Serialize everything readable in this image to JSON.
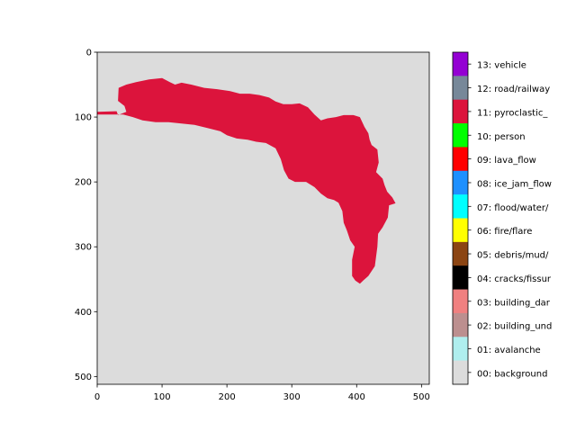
{
  "chart_data": {
    "type": "heatmap",
    "x_ticks": [
      0,
      100,
      200,
      300,
      400,
      500
    ],
    "y_ticks": [
      0,
      100,
      200,
      300,
      400,
      500
    ],
    "xlim": [
      0,
      512
    ],
    "ylim": [
      512,
      0
    ],
    "background_color": "#dcdcdc",
    "mask": {
      "class": "11: pyroclastic_",
      "color": "#dc143c",
      "outline": [
        [
          0,
          92
        ],
        [
          30,
          91
        ],
        [
          32,
          97
        ],
        [
          45,
          92
        ],
        [
          42,
          83
        ],
        [
          32,
          75
        ],
        [
          33,
          55
        ],
        [
          45,
          50
        ],
        [
          60,
          46
        ],
        [
          80,
          42
        ],
        [
          100,
          40
        ],
        [
          112,
          46
        ],
        [
          120,
          50
        ],
        [
          130,
          47
        ],
        [
          145,
          50
        ],
        [
          165,
          55
        ],
        [
          185,
          57
        ],
        [
          205,
          60
        ],
        [
          220,
          64
        ],
        [
          235,
          64
        ],
        [
          250,
          66
        ],
        [
          265,
          70
        ],
        [
          275,
          76
        ],
        [
          287,
          80
        ],
        [
          300,
          80
        ],
        [
          312,
          79
        ],
        [
          325,
          85
        ],
        [
          335,
          96
        ],
        [
          345,
          105
        ],
        [
          355,
          102
        ],
        [
          368,
          100
        ],
        [
          380,
          97
        ],
        [
          395,
          97
        ],
        [
          405,
          100
        ],
        [
          412,
          115
        ],
        [
          418,
          125
        ],
        [
          420,
          135
        ],
        [
          423,
          143
        ],
        [
          432,
          150
        ],
        [
          434,
          170
        ],
        [
          430,
          185
        ],
        [
          440,
          195
        ],
        [
          443,
          205
        ],
        [
          447,
          215
        ],
        [
          455,
          224
        ],
        [
          460,
          233
        ],
        [
          450,
          236
        ],
        [
          448,
          255
        ],
        [
          440,
          270
        ],
        [
          433,
          280
        ],
        [
          432,
          300
        ],
        [
          428,
          330
        ],
        [
          418,
          345
        ],
        [
          410,
          352
        ],
        [
          405,
          357
        ],
        [
          398,
          352
        ],
        [
          393,
          345
        ],
        [
          393,
          320
        ],
        [
          397,
          300
        ],
        [
          390,
          290
        ],
        [
          385,
          275
        ],
        [
          380,
          263
        ],
        [
          378,
          245
        ],
        [
          372,
          232
        ],
        [
          365,
          228
        ],
        [
          355,
          225
        ],
        [
          345,
          218
        ],
        [
          335,
          208
        ],
        [
          322,
          200
        ],
        [
          305,
          200
        ],
        [
          295,
          195
        ],
        [
          288,
          182
        ],
        [
          283,
          165
        ],
        [
          275,
          148
        ],
        [
          260,
          140
        ],
        [
          245,
          138
        ],
        [
          232,
          135
        ],
        [
          215,
          133
        ],
        [
          200,
          128
        ],
        [
          190,
          122
        ],
        [
          170,
          117
        ],
        [
          150,
          112
        ],
        [
          130,
          110
        ],
        [
          110,
          108
        ],
        [
          90,
          108
        ],
        [
          70,
          105
        ],
        [
          55,
          100
        ],
        [
          40,
          96
        ],
        [
          0,
          96
        ]
      ]
    },
    "legend": [
      {
        "label": "13: vehicle",
        "color": "#9400d3"
      },
      {
        "label": "12: road/railway",
        "color": "#778899"
      },
      {
        "label": "11: pyroclastic_",
        "color": "#dc143c"
      },
      {
        "label": "10: person",
        "color": "#00ff00"
      },
      {
        "label": "09: lava_flow",
        "color": "#ff0000"
      },
      {
        "label": "08: ice_jam_flow",
        "color": "#1e90ff"
      },
      {
        "label": "07: flood/water/",
        "color": "#00ffff"
      },
      {
        "label": "06: fire/flare",
        "color": "#ffff00"
      },
      {
        "label": "05: debris/mud/",
        "color": "#8b4513"
      },
      {
        "label": "04: cracks/fissur",
        "color": "#000000"
      },
      {
        "label": "03: building_dar",
        "color": "#f08080"
      },
      {
        "label": "02: building_und",
        "color": "#bc8f8f"
      },
      {
        "label": "01: avalanche",
        "color": "#afeeee"
      },
      {
        "label": "00: background",
        "color": "#dcdcdc"
      }
    ]
  }
}
